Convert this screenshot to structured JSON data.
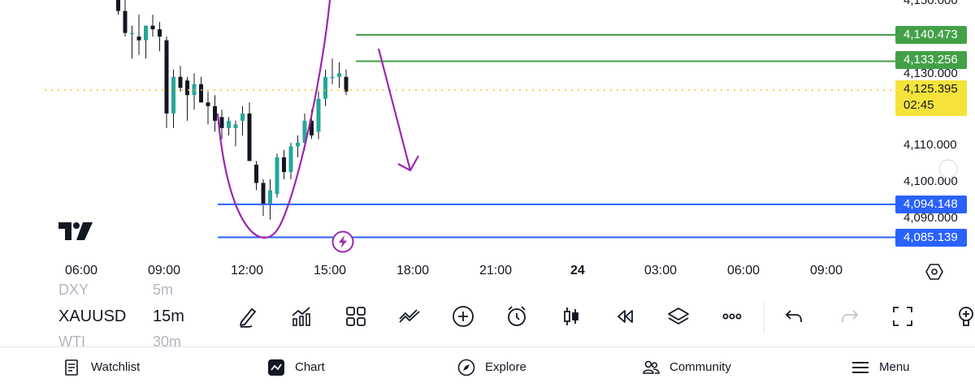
{
  "price_axis": {
    "ticks": [
      "4,150.000",
      "4,130.000",
      "4,110.000",
      "4,100.000",
      "4,090.000"
    ],
    "tags": [
      {
        "value": "4,140.473",
        "color": "#43a047"
      },
      {
        "value": "4,133.256",
        "color": "#43a047"
      },
      {
        "value": "4,094.148",
        "color": "#2962ff"
      },
      {
        "value": "4,085.139",
        "color": "#2962ff"
      }
    ],
    "current": {
      "value": "4,125.395",
      "countdown": "02:45",
      "color": "#f5e33c"
    }
  },
  "time_axis": [
    "06:00",
    "09:00",
    "12:00",
    "15:00",
    "18:00",
    "21:00",
    "24",
    "03:00",
    "06:00",
    "09:00"
  ],
  "chart_data": {
    "type": "candlestick",
    "symbol": "XAUUSD",
    "interval": "15m",
    "y_range": [
      4080,
      4152
    ],
    "candles": [
      {
        "o": 4153,
        "h": 4154,
        "l": 4150,
        "c": 4151
      },
      {
        "o": 4151,
        "h": 4153,
        "l": 4146,
        "c": 4147
      },
      {
        "o": 4147,
        "h": 4150,
        "l": 4140,
        "c": 4141
      },
      {
        "o": 4141,
        "h": 4143,
        "l": 4134,
        "c": 4141
      },
      {
        "o": 4140,
        "h": 4146,
        "l": 4135,
        "c": 4139
      },
      {
        "o": 4139,
        "h": 4143,
        "l": 4134,
        "c": 4143
      },
      {
        "o": 4143,
        "h": 4146,
        "l": 4140,
        "c": 4142
      },
      {
        "o": 4142,
        "h": 4144,
        "l": 4136,
        "c": 4140
      },
      {
        "o": 4139,
        "h": 4140,
        "l": 4115,
        "c": 4119
      },
      {
        "o": 4119,
        "h": 4131,
        "l": 4115,
        "c": 4129
      },
      {
        "o": 4129,
        "h": 4132,
        "l": 4125,
        "c": 4126
      },
      {
        "o": 4128,
        "h": 4129,
        "l": 4117,
        "c": 4124
      },
      {
        "o": 4124,
        "h": 4130,
        "l": 4120,
        "c": 4127
      },
      {
        "o": 4127,
        "h": 4129,
        "l": 4122,
        "c": 4122
      },
      {
        "o": 4122,
        "h": 4125,
        "l": 4116,
        "c": 4121
      },
      {
        "o": 4121,
        "h": 4124,
        "l": 4114,
        "c": 4117
      },
      {
        "o": 4118,
        "h": 4120,
        "l": 4112,
        "c": 4115
      },
      {
        "o": 4115,
        "h": 4118,
        "l": 4113,
        "c": 4117
      },
      {
        "o": 4115,
        "h": 4117,
        "l": 4110,
        "c": 4116
      },
      {
        "o": 4117,
        "h": 4121,
        "l": 4113,
        "c": 4119
      },
      {
        "o": 4119,
        "h": 4122,
        "l": 4106,
        "c": 4106
      },
      {
        "o": 4105,
        "h": 4106,
        "l": 4098,
        "c": 4100
      },
      {
        "o": 4100,
        "h": 4101,
        "l": 4091,
        "c": 4094
      },
      {
        "o": 4094,
        "h": 4101,
        "l": 4090,
        "c": 4098
      },
      {
        "o": 4097,
        "h": 4108,
        "l": 4096,
        "c": 4107
      },
      {
        "o": 4107,
        "h": 4109,
        "l": 4101,
        "c": 4103
      },
      {
        "o": 4103,
        "h": 4111,
        "l": 4101,
        "c": 4110
      },
      {
        "o": 4110,
        "h": 4113,
        "l": 4107,
        "c": 4111
      },
      {
        "o": 4111,
        "h": 4119,
        "l": 4109,
        "c": 4117
      },
      {
        "o": 4117,
        "h": 4120,
        "l": 4112,
        "c": 4113
      },
      {
        "o": 4114,
        "h": 4125,
        "l": 4112,
        "c": 4123
      },
      {
        "o": 4123,
        "h": 4131,
        "l": 4121,
        "c": 4129
      },
      {
        "o": 4129,
        "h": 4134,
        "l": 4127,
        "c": 4129
      },
      {
        "o": 4129,
        "h": 4133,
        "l": 4126,
        "c": 4130
      },
      {
        "o": 4129,
        "h": 4131,
        "l": 4124,
        "c": 4125
      }
    ],
    "horizontal_levels": [
      4140.473,
      4133.256,
      4094.148,
      4085.139
    ],
    "current_price": 4125.395
  },
  "toolbar": {
    "symbol_prev": "DXY",
    "symbol": "XAUUSD",
    "symbol_next": "WTI",
    "interval_prev": "5m",
    "interval": "15m",
    "interval_next": "30m"
  },
  "nav": {
    "watchlist": "Watchlist",
    "chart": "Chart",
    "explore": "Explore",
    "community": "Community",
    "menu": "Menu"
  }
}
